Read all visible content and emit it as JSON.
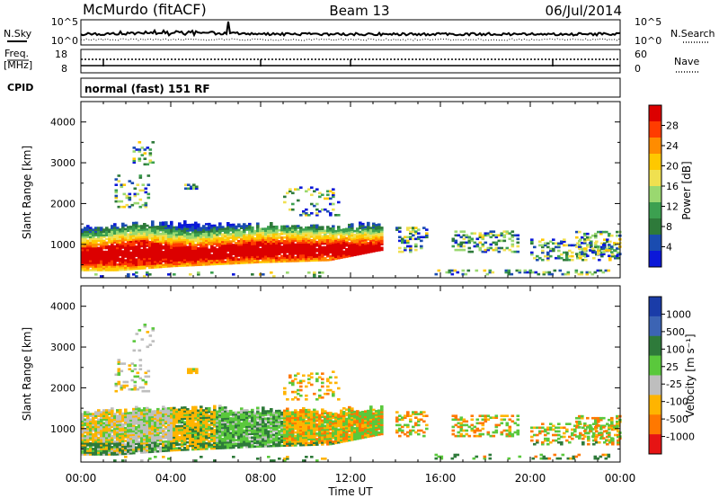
{
  "header": {
    "title": "McMurdo (fitACF)",
    "beam": "Beam 13",
    "date": "06/Jul/2014"
  },
  "top_panels": {
    "nsky_label": "N.Sky",
    "nsearch_label": "N.Search",
    "noise_ticks_left": [
      "10^5",
      "10^0"
    ],
    "noise_ticks_right": [
      "10^5",
      "10^0"
    ],
    "freq_label": "Freq.",
    "freq_unit": "[MHz]",
    "freq_ticks": [
      "18",
      "8"
    ],
    "nave_label": "Nave",
    "nave_ticks": [
      "60",
      "0"
    ],
    "cpid_label": "CPID",
    "cpid_text": "normal (fast) 151 RF"
  },
  "chart_data": [
    {
      "type": "heatmap",
      "name": "power",
      "ylabel": "Slant Range [km]",
      "yticks": [
        1000,
        2000,
        3000,
        4000
      ],
      "ylim": [
        180,
        4500
      ],
      "colorbar": {
        "label": "Power [dB]",
        "ticks": [
          "28",
          "24",
          "20",
          "16",
          "12",
          "8",
          "4"
        ],
        "colors": [
          "#dc0000",
          "#ff3c00",
          "#ff8c00",
          "#ffc800",
          "#f0e050",
          "#9ad870",
          "#3ca050",
          "#2e7a3a",
          "#1a4cb0",
          "#0b18d8"
        ]
      },
      "main_band": [
        {
          "t": 0.0,
          "r1": 350,
          "r2": 1400
        },
        {
          "t": 1.5,
          "r1": 350,
          "r2": 1450
        },
        {
          "t": 4.0,
          "r1": 450,
          "r2": 1500
        },
        {
          "t": 8.0,
          "r1": 550,
          "r2": 1450
        },
        {
          "t": 11.0,
          "r1": 600,
          "r2": 1400
        },
        {
          "t": 13.3,
          "r1": 850,
          "r2": 1500
        }
      ],
      "core_band": [
        {
          "t": 0.3,
          "r1": 500,
          "r2": 900
        },
        {
          "t": 2.5,
          "r1": 450,
          "r2": 1100
        },
        {
          "t": 5.0,
          "r1": 600,
          "r2": 900
        },
        {
          "t": 8.0,
          "r1": 650,
          "r2": 1050
        },
        {
          "t": 11.0,
          "r1": 700,
          "r2": 1000
        }
      ]
    },
    {
      "type": "heatmap",
      "name": "velocity",
      "ylabel": "Slant Range [km]",
      "yticks": [
        1000,
        2000,
        3000,
        4000
      ],
      "ylim": [
        180,
        4500
      ],
      "colorbar": {
        "label": "Velocity [m s⁻¹]",
        "ticks": [
          "1000",
          "500",
          "100",
          "25",
          "-25",
          "-100",
          "-500",
          "-1000"
        ],
        "colors": [
          "#1a3ca8",
          "#3c64b4",
          "#2e7a3a",
          "#5ac83c",
          "#bebebe",
          "#ffb400",
          "#ff7800",
          "#e61414"
        ]
      },
      "xlabel": "Time UT",
      "xticks": [
        "00:00",
        "04:00",
        "08:00",
        "12:00",
        "16:00",
        "20:00",
        "00:00"
      ],
      "xlim_hours": [
        0,
        24
      ]
    }
  ]
}
